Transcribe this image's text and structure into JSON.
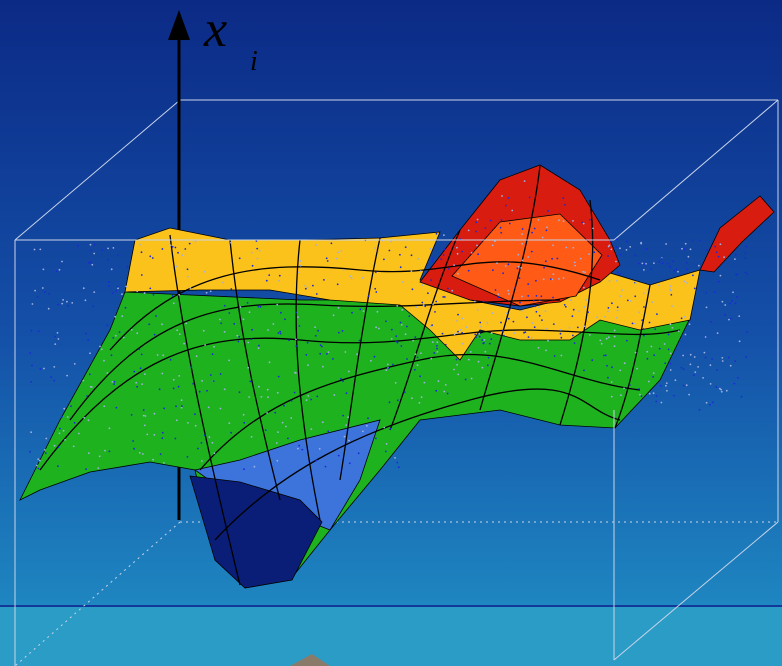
{
  "axis_label": {
    "symbol": "x",
    "subscript": "i"
  }
}
